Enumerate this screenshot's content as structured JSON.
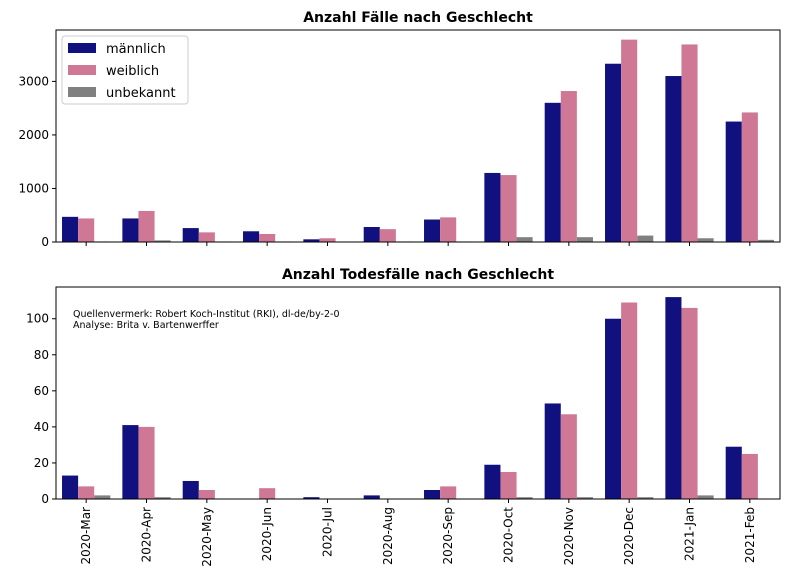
{
  "chart_data": [
    {
      "type": "bar",
      "title": "Anzahl Fälle nach Geschlecht",
      "categories": [
        "2020-Mar",
        "2020-Apr",
        "2020-May",
        "2020-Jun",
        "2020-Jul",
        "2020-Aug",
        "2020-Sep",
        "2020-Oct",
        "2020-Nov",
        "2020-Dec",
        "2021-Jan",
        "2021-Feb"
      ],
      "series": [
        {
          "name": "männlich",
          "color": "#10107e",
          "values": [
            470,
            440,
            260,
            200,
            50,
            280,
            420,
            1290,
            2600,
            3330,
            3100,
            2250
          ]
        },
        {
          "name": "weiblich",
          "color": "#cf7896",
          "values": [
            440,
            580,
            180,
            150,
            70,
            240,
            460,
            1250,
            2820,
            3780,
            3690,
            2420
          ]
        },
        {
          "name": "unbekannt",
          "color": "#808080",
          "values": [
            10,
            30,
            10,
            10,
            0,
            10,
            10,
            90,
            90,
            120,
            70,
            40
          ]
        }
      ],
      "ylim": [
        0,
        3960
      ],
      "yticks": [
        0,
        1000,
        2000,
        3000
      ],
      "legend_position": "top-left",
      "xlabel": "",
      "ylabel": ""
    },
    {
      "type": "bar",
      "title": "Anzahl Todesfälle nach Geschlecht",
      "categories": [
        "2020-Mar",
        "2020-Apr",
        "2020-May",
        "2020-Jun",
        "2020-Jul",
        "2020-Aug",
        "2020-Sep",
        "2020-Oct",
        "2020-Nov",
        "2020-Dec",
        "2021-Jan",
        "2021-Feb"
      ],
      "series": [
        {
          "name": "männlich",
          "color": "#10107e",
          "values": [
            13,
            41,
            10,
            0,
            1,
            2,
            5,
            19,
            53,
            100,
            112,
            29
          ]
        },
        {
          "name": "weiblich",
          "color": "#cf7896",
          "values": [
            7,
            40,
            5,
            6,
            0,
            0,
            7,
            15,
            47,
            109,
            106,
            25
          ]
        },
        {
          "name": "unbekannt",
          "color": "#808080",
          "values": [
            2,
            1,
            0,
            0,
            0,
            0,
            0,
            1,
            1,
            1,
            2,
            0
          ]
        }
      ],
      "ylim": [
        0,
        117.6
      ],
      "yticks": [
        0,
        20,
        40,
        60,
        80,
        100
      ],
      "annotations": [
        "Quellenvermerk: Robert Koch-Institut (RKI), dl-de/by-2-0",
        "Analyse: Brita v. Bartenwerffer"
      ],
      "xlabel": "",
      "ylabel": ""
    }
  ]
}
